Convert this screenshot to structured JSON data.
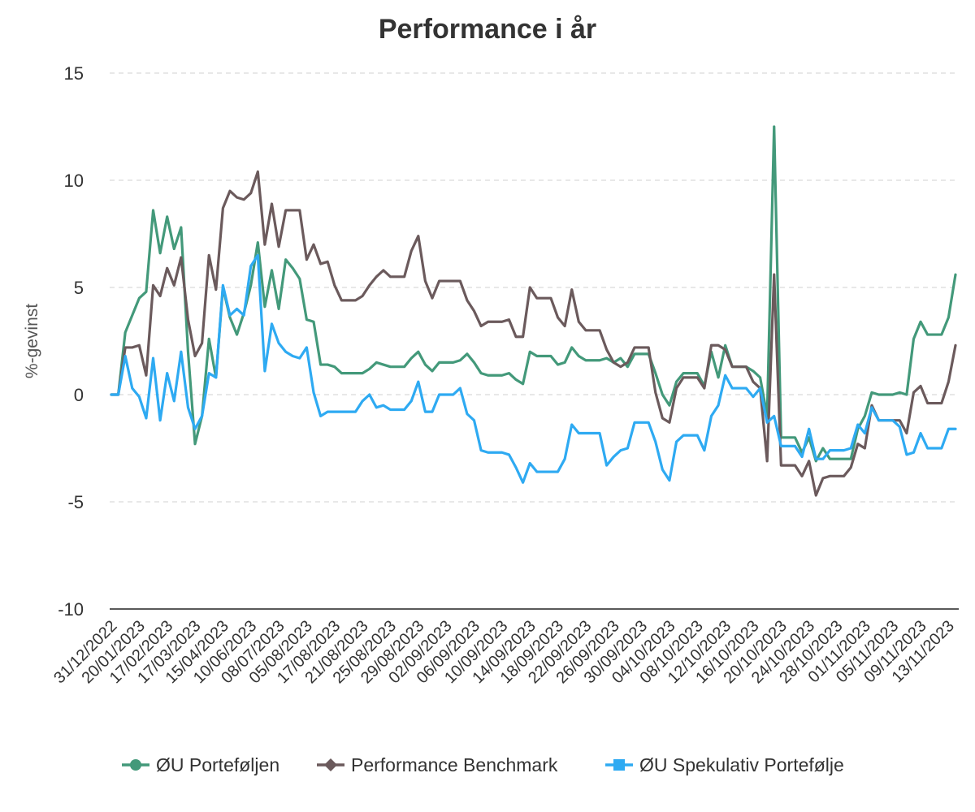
{
  "chart_data": {
    "type": "line",
    "title": "Performance i år",
    "xlabel": "",
    "ylabel": "%-gevinst",
    "ylim": [
      -10,
      15
    ],
    "yticks": [
      15,
      10,
      5,
      0,
      -5,
      -10
    ],
    "yticklabels": [
      "15",
      "10",
      "5",
      "0",
      "-5",
      "-10"
    ],
    "grid": true,
    "legend": "bottom",
    "xticklabels": [
      "31/12/2022",
      "20/01/2023",
      "17/02/2023",
      "17/03/2023",
      "15/04/2023",
      "10/06/2023",
      "08/07/2023",
      "05/08/2023",
      "17/08/2023",
      "21/08/2023",
      "25/08/2023",
      "29/08/2023",
      "02/09/2023",
      "06/09/2023",
      "10/09/2023",
      "14/09/2023",
      "18/09/2023",
      "22/09/2023",
      "26/09/2023",
      "30/09/2023",
      "04/10/2023",
      "08/10/2023",
      "12/10/2023",
      "16/10/2023",
      "20/10/2023",
      "24/10/2023",
      "28/10/2023",
      "01/11/2023",
      "05/11/2023",
      "09/11/2023",
      "13/11/2023"
    ],
    "xtick_step": 4,
    "series": [
      {
        "name": "ØU Porteføljen",
        "color": "#43997a",
        "marker": "circle",
        "values": [
          0,
          0,
          2.9,
          3.7,
          4.5,
          4.8,
          8.6,
          6.6,
          8.3,
          6.8,
          7.8,
          2.0,
          -2.3,
          -1.0,
          2.6,
          0.8,
          5.0,
          3.6,
          2.8,
          3.8,
          5.1,
          7.1,
          4.1,
          5.8,
          4.0,
          6.3,
          5.9,
          5.4,
          3.5,
          3.4,
          1.4,
          1.4,
          1.3,
          1.0,
          1.0,
          1.0,
          1.0,
          1.2,
          1.5,
          1.4,
          1.3,
          1.3,
          1.3,
          1.7,
          2.0,
          1.4,
          1.1,
          1.5,
          1.5,
          1.5,
          1.6,
          1.9,
          1.5,
          1.0,
          0.9,
          0.9,
          0.9,
          1.0,
          0.7,
          0.5,
          2.0,
          1.8,
          1.8,
          1.8,
          1.4,
          1.5,
          2.2,
          1.8,
          1.6,
          1.6,
          1.6,
          1.7,
          1.5,
          1.7,
          1.3,
          1.9,
          1.9,
          1.9,
          1.0,
          0.0,
          -0.5,
          0.6,
          1.0,
          1.0,
          1.0,
          0.4,
          2.0,
          0.8,
          2.3,
          1.3,
          1.3,
          1.3,
          1.1,
          0.8,
          -1.0,
          12.5,
          -2.0,
          -2.0,
          -2.0,
          -2.7,
          -2.0,
          -3.1,
          -2.5,
          -3.0,
          -3.0,
          -3.0,
          -3.0,
          -1.6,
          -1.0,
          0.1,
          0.0,
          0.0,
          0.0,
          0.1,
          0.0,
          2.6,
          3.4,
          2.8,
          2.8,
          2.8,
          3.6,
          5.6
        ]
      },
      {
        "name": "Performance Benchmark",
        "color": "#6b5a5c",
        "marker": "diamond",
        "values": [
          0,
          0,
          2.2,
          2.2,
          2.3,
          0.9,
          5.1,
          4.6,
          5.9,
          5.1,
          6.4,
          3.5,
          1.8,
          2.4,
          6.5,
          4.9,
          8.7,
          9.5,
          9.2,
          9.1,
          9.4,
          10.4,
          7.0,
          8.9,
          6.9,
          8.6,
          8.6,
          8.6,
          6.3,
          7.0,
          6.1,
          6.2,
          5.1,
          4.4,
          4.4,
          4.4,
          4.6,
          5.1,
          5.5,
          5.8,
          5.5,
          5.5,
          5.5,
          6.7,
          7.4,
          5.3,
          4.5,
          5.3,
          5.3,
          5.3,
          5.3,
          4.4,
          3.9,
          3.2,
          3.4,
          3.4,
          3.4,
          3.5,
          2.7,
          2.7,
          5.0,
          4.5,
          4.5,
          4.5,
          3.6,
          3.2,
          4.9,
          3.4,
          3.0,
          3.0,
          3.0,
          2.1,
          1.5,
          1.3,
          1.5,
          2.2,
          2.2,
          2.2,
          0.1,
          -1.1,
          -1.3,
          0.3,
          0.8,
          0.8,
          0.8,
          0.3,
          2.3,
          2.3,
          2.1,
          1.3,
          1.3,
          1.3,
          0.6,
          0.3,
          -3.1,
          5.6,
          -3.3,
          -3.3,
          -3.3,
          -3.8,
          -3.1,
          -4.7,
          -3.9,
          -3.8,
          -3.8,
          -3.8,
          -3.4,
          -2.3,
          -2.5,
          -0.5,
          -1.2,
          -1.2,
          -1.2,
          -1.2,
          -1.8,
          0.1,
          0.4,
          -0.4,
          -0.4,
          -0.4,
          0.6,
          2.3
        ]
      },
      {
        "name": "ØU Spekulativ Portefølje",
        "color": "#2eaaf2",
        "marker": "square",
        "values": [
          0,
          0,
          1.8,
          0.3,
          -0.1,
          -1.1,
          1.7,
          -1.2,
          1.0,
          -0.3,
          2.0,
          -0.6,
          -1.6,
          -1.0,
          1.0,
          0.8,
          5.1,
          3.7,
          4.0,
          3.7,
          6.0,
          6.5,
          1.1,
          3.3,
          2.4,
          2.0,
          1.8,
          1.7,
          2.2,
          0.1,
          -1.0,
          -0.8,
          -0.8,
          -0.8,
          -0.8,
          -0.8,
          -0.3,
          0.0,
          -0.6,
          -0.5,
          -0.7,
          -0.7,
          -0.7,
          -0.3,
          0.6,
          -0.8,
          -0.8,
          0.0,
          0.0,
          0.0,
          0.3,
          -0.9,
          -1.2,
          -2.6,
          -2.7,
          -2.7,
          -2.7,
          -2.8,
          -3.4,
          -4.1,
          -3.2,
          -3.6,
          -3.6,
          -3.6,
          -3.6,
          -3.0,
          -1.4,
          -1.8,
          -1.8,
          -1.8,
          -1.8,
          -3.3,
          -2.9,
          -2.6,
          -2.5,
          -1.3,
          -1.3,
          -1.3,
          -2.2,
          -3.5,
          -4.0,
          -2.2,
          -1.9,
          -1.9,
          -1.9,
          -2.6,
          -1.0,
          -0.5,
          0.9,
          0.3,
          0.3,
          0.3,
          -0.1,
          0.3,
          -1.3,
          -1.0,
          -2.4,
          -2.4,
          -2.4,
          -2.9,
          -1.6,
          -3.0,
          -3.0,
          -2.6,
          -2.6,
          -2.6,
          -2.5,
          -1.4,
          -1.8,
          -0.6,
          -1.2,
          -1.2,
          -1.2,
          -1.5,
          -2.8,
          -2.7,
          -1.8,
          -2.5,
          -2.5,
          -2.5,
          -1.6,
          -1.6
        ]
      }
    ]
  }
}
